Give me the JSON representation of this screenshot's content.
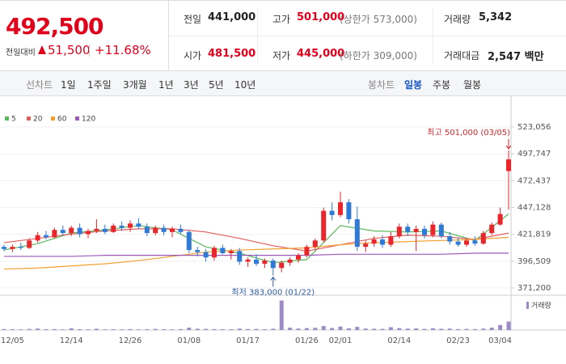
{
  "header": {
    "price": "492,500",
    "change_label": "전일대비",
    "change": "51,500",
    "change_rate": "+11.68%",
    "prev_close": {
      "label": "전일",
      "value": "441,000"
    },
    "high": {
      "label": "고가",
      "value": "501,000",
      "note": "(상한가 573,000)"
    },
    "volume": {
      "label": "거래량",
      "value": "5,342"
    },
    "open": {
      "label": "시가",
      "value": "481,500"
    },
    "low": {
      "label": "저가",
      "value": "445,000",
      "note": "(하한가 309,000)"
    },
    "amount": {
      "label": "거래대금",
      "value": "2,547 백만"
    }
  },
  "toolbar": {
    "line_chart": "선차트",
    "periods": [
      "1일",
      "1주일",
      "3개월",
      "1년",
      "3년",
      "5년",
      "10년"
    ],
    "candle_chart": "봉차트",
    "intervals": [
      "일봉",
      "주봉",
      "월봉"
    ],
    "selected_interval": 0
  },
  "chart_data": {
    "type": "candlestick",
    "categories": [
      null,
      "12/05",
      null,
      null,
      null,
      null,
      null,
      null,
      "12/14",
      null,
      null,
      null,
      null,
      null,
      null,
      "12/26",
      null,
      null,
      null,
      null,
      null,
      null,
      "01/08",
      null,
      null,
      null,
      null,
      null,
      null,
      "01/17",
      null,
      null,
      null,
      null,
      null,
      null,
      "01/26",
      null,
      null,
      null,
      "02/01",
      null,
      null,
      null,
      null,
      null,
      null,
      "02/14",
      null,
      null,
      null,
      null,
      null,
      null,
      "02/23",
      null,
      null,
      null,
      null,
      "03/04",
      null
    ],
    "open": [
      410000,
      408000,
      410000,
      409000,
      416000,
      421000,
      419000,
      426000,
      423000,
      428000,
      422000,
      425000,
      427000,
      424000,
      430000,
      428000,
      432000,
      429000,
      423000,
      428000,
      424000,
      427000,
      424000,
      407000,
      405000,
      400000,
      409000,
      404000,
      406000,
      396000,
      398000,
      394000,
      397000,
      390000,
      395000,
      398000,
      402000,
      410000,
      416000,
      444000,
      440000,
      452000,
      436000,
      410000,
      413000,
      417000,
      412000,
      420000,
      429000,
      424000,
      427000,
      421000,
      431000,
      420000,
      415000,
      412000,
      416000,
      413000,
      423000,
      431000,
      481500
    ],
    "high": [
      412000,
      412000,
      414000,
      418000,
      424000,
      425000,
      428000,
      430000,
      430000,
      432000,
      427000,
      436000,
      431000,
      432000,
      434000,
      435000,
      437000,
      432000,
      430000,
      431000,
      429000,
      431000,
      426000,
      410000,
      408000,
      411000,
      412000,
      408000,
      409000,
      400000,
      403000,
      399000,
      399000,
      397000,
      400000,
      404000,
      412000,
      418000,
      447000,
      452000,
      462000,
      455000,
      448000,
      416000,
      420000,
      421000,
      424000,
      432000,
      432000,
      430000,
      430000,
      434000,
      433000,
      424000,
      419000,
      418000,
      420000,
      425000,
      433000,
      447000,
      501000
    ],
    "low": [
      406000,
      405000,
      407000,
      408000,
      414000,
      417000,
      418000,
      421000,
      420000,
      419000,
      418000,
      423000,
      422000,
      423000,
      425000,
      424000,
      427000,
      420000,
      421000,
      421000,
      419000,
      422000,
      404000,
      401000,
      396000,
      397000,
      403000,
      398000,
      393000,
      391000,
      392000,
      390000,
      383000,
      386000,
      392000,
      395000,
      400000,
      408000,
      414000,
      435000,
      438000,
      432000,
      406000,
      405000,
      410000,
      409000,
      410000,
      418000,
      420000,
      406000,
      418000,
      419000,
      418000,
      412000,
      410000,
      410000,
      411000,
      412000,
      421000,
      430000,
      445000
    ],
    "close": [
      408000,
      410000,
      409000,
      416000,
      421000,
      419000,
      426000,
      423000,
      428000,
      422000,
      425000,
      427000,
      424000,
      430000,
      428000,
      432000,
      429000,
      423000,
      428000,
      424000,
      427000,
      424000,
      407000,
      405000,
      400000,
      409000,
      404000,
      406000,
      396000,
      398000,
      394000,
      397000,
      390000,
      395000,
      398000,
      402000,
      410000,
      416000,
      444000,
      440000,
      452000,
      436000,
      410000,
      413000,
      417000,
      412000,
      420000,
      429000,
      424000,
      427000,
      421000,
      431000,
      420000,
      415000,
      412000,
      416000,
      413000,
      423000,
      431000,
      441000,
      492500
    ],
    "up_color": "#e8262b",
    "down_color": "#2f7ad6",
    "series": [
      {
        "name": "5",
        "color": "#5cb85c",
        "x": [
          0,
          4,
          8,
          12,
          16,
          20,
          24,
          28,
          32,
          36,
          40,
          44,
          48,
          52,
          56,
          60
        ],
        "values": [
          407000,
          413000,
          423000,
          426000,
          430000,
          426000,
          410000,
          404000,
          395000,
          398000,
          430000,
          425000,
          424000,
          425000,
          416000,
          441000
        ]
      },
      {
        "name": "20",
        "color": "#e06060",
        "x": [
          0,
          4,
          8,
          12,
          16,
          20,
          24,
          28,
          32,
          36,
          40,
          44,
          48,
          52,
          56,
          60
        ],
        "values": [
          414000,
          418000,
          422000,
          425000,
          427000,
          427000,
          424000,
          418000,
          411000,
          406000,
          412000,
          418000,
          421000,
          420000,
          417000,
          423000
        ]
      },
      {
        "name": "60",
        "color": "#f0a030",
        "x": [
          0,
          4,
          8,
          12,
          16,
          20,
          24,
          28,
          32,
          36,
          40,
          44,
          48,
          52,
          56,
          60
        ],
        "values": [
          389000,
          390000,
          392000,
          394000,
          397000,
          401000,
          405000,
          407000,
          408000,
          409000,
          412000,
          414000,
          415000,
          416000,
          417000,
          419000
        ]
      },
      {
        "name": "120",
        "color": "#9b59b6",
        "x": [
          0,
          4,
          8,
          12,
          16,
          20,
          24,
          28,
          32,
          36,
          40,
          44,
          48,
          52,
          56,
          60
        ],
        "values": [
          401000,
          401000,
          401000,
          402000,
          402000,
          402000,
          402000,
          402000,
          402000,
          402000,
          403000,
          403000,
          403000,
          403000,
          404000,
          404000
        ]
      }
    ],
    "annotations": {
      "high": "최고 501,000 (03/05)",
      "low": "최저 383,000 (01/22)"
    },
    "ylim": [
      371200,
      523056
    ],
    "yticks": [
      {
        "value": 523056,
        "label": "523,056"
      },
      {
        "value": 497747,
        "label": "497,747"
      },
      {
        "value": 472437,
        "label": "472,437"
      },
      {
        "value": 447128,
        "label": "447,128"
      },
      {
        "value": 421819,
        "label": "421,819"
      },
      {
        "value": 396509,
        "label": "396,509"
      },
      {
        "value": 371200,
        "label": "371,200"
      }
    ],
    "grid": true,
    "volume": {
      "name": "거래량",
      "color": "#9d8ac7",
      "ylim": [
        0,
        20000
      ],
      "values": [
        600,
        500,
        400,
        700,
        900,
        500,
        600,
        400,
        1100,
        500,
        400,
        800,
        400,
        500,
        400,
        600,
        400,
        500,
        700,
        500,
        400,
        600,
        1500,
        800,
        700,
        600,
        500,
        500,
        900,
        600,
        700,
        500,
        800,
        18700,
        1500,
        900,
        1200,
        1400,
        2500,
        1300,
        2200,
        1100,
        2000,
        900,
        800,
        700,
        1800,
        1200,
        900,
        1000,
        700,
        1100,
        800,
        900,
        600,
        700,
        600,
        900,
        1500,
        3200,
        5342
      ]
    }
  }
}
